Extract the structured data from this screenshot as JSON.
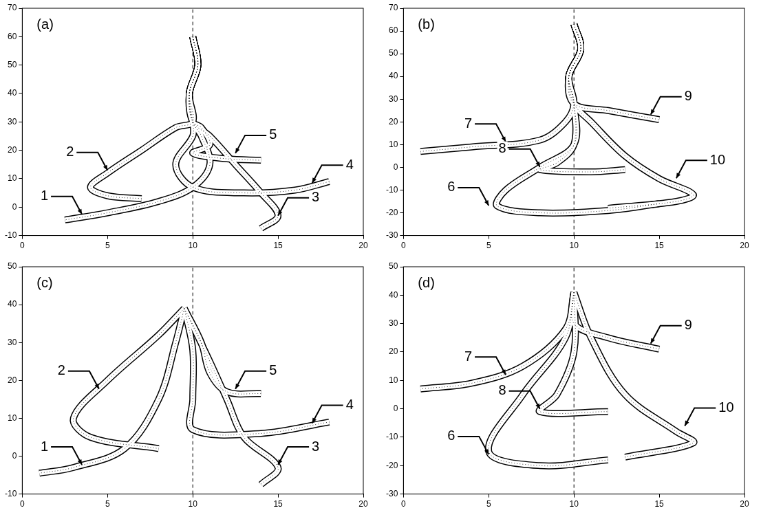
{
  "chart_data": [
    {
      "type": "line",
      "title": "(a)",
      "xlim": [
        0,
        20
      ],
      "ylim": [
        -10,
        70
      ],
      "xticks": [
        0,
        5,
        10,
        15,
        20
      ],
      "yticks": [
        -10,
        0,
        10,
        20,
        30,
        40,
        50,
        60,
        70
      ],
      "grid": false,
      "series": [
        {
          "x": [
            10,
            10,
            10
          ],
          "values": [
            -10,
            30,
            70
          ],
          "color": "#000000",
          "line_style": "dashed"
        },
        {
          "x": [
            10,
            10.3,
            9.8,
            10,
            10.5,
            11,
            10,
            8,
            5,
            2.5
          ],
          "values": [
            60,
            50,
            40,
            30,
            25,
            15,
            7,
            2,
            -2,
            -4.5
          ],
          "color": "#000000",
          "line_style": "solid"
        },
        {
          "x": [
            10,
            10.3,
            9.8,
            10,
            9,
            7,
            5,
            4,
            5,
            7
          ],
          "values": [
            60,
            50,
            40,
            30,
            28,
            20,
            12,
            7,
            4,
            3
          ],
          "color": "#000000",
          "line_style": "solid"
        },
        {
          "x": [
            10,
            10.3,
            9.8,
            10,
            11,
            12.5,
            14,
            15,
            14
          ],
          "values": [
            60,
            50,
            40,
            30,
            25,
            15,
            5,
            -3,
            -7.5
          ],
          "color": "#000000",
          "line_style": "solid"
        },
        {
          "x": [
            10,
            10.3,
            9.8,
            10,
            10,
            9,
            10,
            13,
            16,
            18
          ],
          "values": [
            60,
            50,
            40,
            30,
            25,
            15,
            7,
            5,
            6,
            9
          ],
          "color": "#000000",
          "line_style": "solid"
        },
        {
          "x": [
            10,
            10.3,
            9.8,
            10,
            10.5,
            11,
            10,
            12,
            14
          ],
          "values": [
            60,
            50,
            40,
            30,
            28,
            22,
            19,
            17,
            16.5
          ],
          "color": "#000000",
          "line_style": "solid"
        }
      ],
      "annotations": [
        {
          "text": "1",
          "x": 3.5,
          "y": -3.5
        },
        {
          "text": "2",
          "x": 5,
          "y": 12
        },
        {
          "text": "3",
          "x": 15,
          "y": -4
        },
        {
          "text": "4",
          "x": 17,
          "y": 7.5
        },
        {
          "text": "5",
          "x": 12.5,
          "y": 18
        }
      ]
    },
    {
      "type": "line",
      "title": "(b)",
      "xlim": [
        0,
        20
      ],
      "ylim": [
        -30,
        70
      ],
      "xticks": [
        0,
        5,
        10,
        15,
        20
      ],
      "yticks": [
        -30,
        -20,
        -10,
        0,
        10,
        20,
        30,
        40,
        50,
        60,
        70
      ],
      "grid": false,
      "series": [
        {
          "x": [
            10,
            10,
            10
          ],
          "values": [
            -30,
            20,
            70
          ],
          "color": "#000000",
          "line_style": "dashed"
        },
        {
          "x": [
            10,
            10.4,
            9.7,
            10,
            10,
            8,
            6,
            5.5,
            8,
            12,
            15
          ],
          "values": [
            63,
            52,
            40,
            28,
            10,
            0,
            -10,
            -17,
            -20,
            -19,
            -16
          ],
          "color": "#000000",
          "line_style": "solid"
        },
        {
          "x": [
            10,
            10.4,
            9.7,
            10,
            9.5,
            8,
            4,
            1
          ],
          "values": [
            63,
            52,
            40,
            28,
            20,
            12,
            9,
            7
          ],
          "color": "#000000",
          "line_style": "solid"
        },
        {
          "x": [
            10,
            10.4,
            9.7,
            10,
            10,
            9,
            8,
            11,
            13
          ],
          "values": [
            63,
            52,
            40,
            28,
            10,
            2,
            -1,
            -2,
            -1
          ],
          "color": "#000000",
          "line_style": "solid"
        },
        {
          "x": [
            10,
            10.4,
            9.7,
            10,
            12,
            15
          ],
          "values": [
            63,
            52,
            40,
            28,
            25,
            21
          ],
          "color": "#000000",
          "line_style": "solid"
        },
        {
          "x": [
            10,
            10.4,
            9.7,
            10,
            11,
            13,
            15,
            17,
            16,
            12
          ],
          "values": [
            63,
            52,
            40,
            28,
            20,
            5,
            -5,
            -12,
            -15,
            -18
          ],
          "color": "#000000",
          "line_style": "solid"
        }
      ],
      "annotations": [
        {
          "text": "6",
          "x": 5,
          "y": -18
        },
        {
          "text": "7",
          "x": 6,
          "y": 10
        },
        {
          "text": "8",
          "x": 8,
          "y": -1
        },
        {
          "text": "9",
          "x": 14.5,
          "y": 22
        },
        {
          "text": "10",
          "x": 16,
          "y": -6
        }
      ]
    },
    {
      "type": "line",
      "title": "(c)",
      "xlim": [
        0,
        20
      ],
      "ylim": [
        -10,
        50
      ],
      "xticks": [
        0,
        5,
        10,
        15,
        20
      ],
      "yticks": [
        -10,
        0,
        10,
        20,
        30,
        40,
        50
      ],
      "grid": false,
      "series": [
        {
          "x": [
            10,
            10,
            10
          ],
          "values": [
            -10,
            20,
            50
          ],
          "color": "#000000",
          "line_style": "dashed"
        },
        {
          "x": [
            9.5,
            9,
            8,
            6,
            3,
            1
          ],
          "values": [
            39,
            30,
            15,
            2,
            -3,
            -4.5
          ],
          "color": "#000000",
          "line_style": "solid"
        },
        {
          "x": [
            9.5,
            8,
            5,
            3,
            4,
            8
          ],
          "values": [
            39,
            32,
            20,
            10,
            5,
            2
          ],
          "color": "#000000",
          "line_style": "solid"
        },
        {
          "x": [
            9.5,
            11,
            12,
            13,
            15,
            14
          ],
          "values": [
            39,
            25,
            15,
            5,
            -3,
            -7.5
          ],
          "color": "#000000",
          "line_style": "solid"
        },
        {
          "x": [
            9.5,
            10,
            10,
            10,
            14,
            18
          ],
          "values": [
            39,
            28,
            15,
            7,
            6,
            9
          ],
          "color": "#000000",
          "line_style": "solid"
        },
        {
          "x": [
            9.5,
            10.5,
            11,
            12,
            14
          ],
          "values": [
            39,
            30,
            22,
            17,
            16.5
          ],
          "color": "#000000",
          "line_style": "solid"
        }
      ],
      "annotations": [
        {
          "text": "1",
          "x": 3.5,
          "y": -3
        },
        {
          "text": "2",
          "x": 4.5,
          "y": 17
        },
        {
          "text": "3",
          "x": 15,
          "y": -3
        },
        {
          "text": "4",
          "x": 17,
          "y": 8
        },
        {
          "text": "5",
          "x": 12.5,
          "y": 17
        }
      ]
    },
    {
      "type": "line",
      "title": "(d)",
      "xlim": [
        0,
        20
      ],
      "ylim": [
        -30,
        50
      ],
      "xticks": [
        0,
        5,
        10,
        15,
        20
      ],
      "yticks": [
        -30,
        -20,
        -10,
        0,
        10,
        20,
        30,
        40,
        50
      ],
      "grid": false,
      "series": [
        {
          "x": [
            10,
            10,
            10
          ],
          "values": [
            -30,
            10,
            50
          ],
          "color": "#000000",
          "line_style": "dashed"
        },
        {
          "x": [
            10,
            9.5,
            7,
            5,
            8,
            12
          ],
          "values": [
            41,
            25,
            5,
            -15,
            -20,
            -18
          ],
          "color": "#000000",
          "line_style": "solid"
        },
        {
          "x": [
            10,
            9.5,
            7,
            4,
            1
          ],
          "values": [
            41,
            28,
            15,
            9,
            7
          ],
          "color": "#000000",
          "line_style": "solid"
        },
        {
          "x": [
            10,
            10,
            9,
            8,
            12
          ],
          "values": [
            41,
            20,
            5,
            -1,
            -1
          ],
          "color": "#000000",
          "line_style": "solid"
        },
        {
          "x": [
            10,
            10,
            12,
            15
          ],
          "values": [
            41,
            30,
            25,
            21
          ],
          "color": "#000000",
          "line_style": "solid"
        },
        {
          "x": [
            10,
            11,
            13,
            16,
            17,
            13
          ],
          "values": [
            41,
            25,
            5,
            -8,
            -12,
            -17
          ],
          "color": "#000000",
          "line_style": "solid"
        }
      ],
      "annotations": [
        {
          "text": "6",
          "x": 5,
          "y": -17
        },
        {
          "text": "7",
          "x": 6,
          "y": 11
        },
        {
          "text": "8",
          "x": 8,
          "y": -1
        },
        {
          "text": "9",
          "x": 14.5,
          "y": 22
        },
        {
          "text": "10",
          "x": 16.5,
          "y": -7
        }
      ]
    }
  ]
}
